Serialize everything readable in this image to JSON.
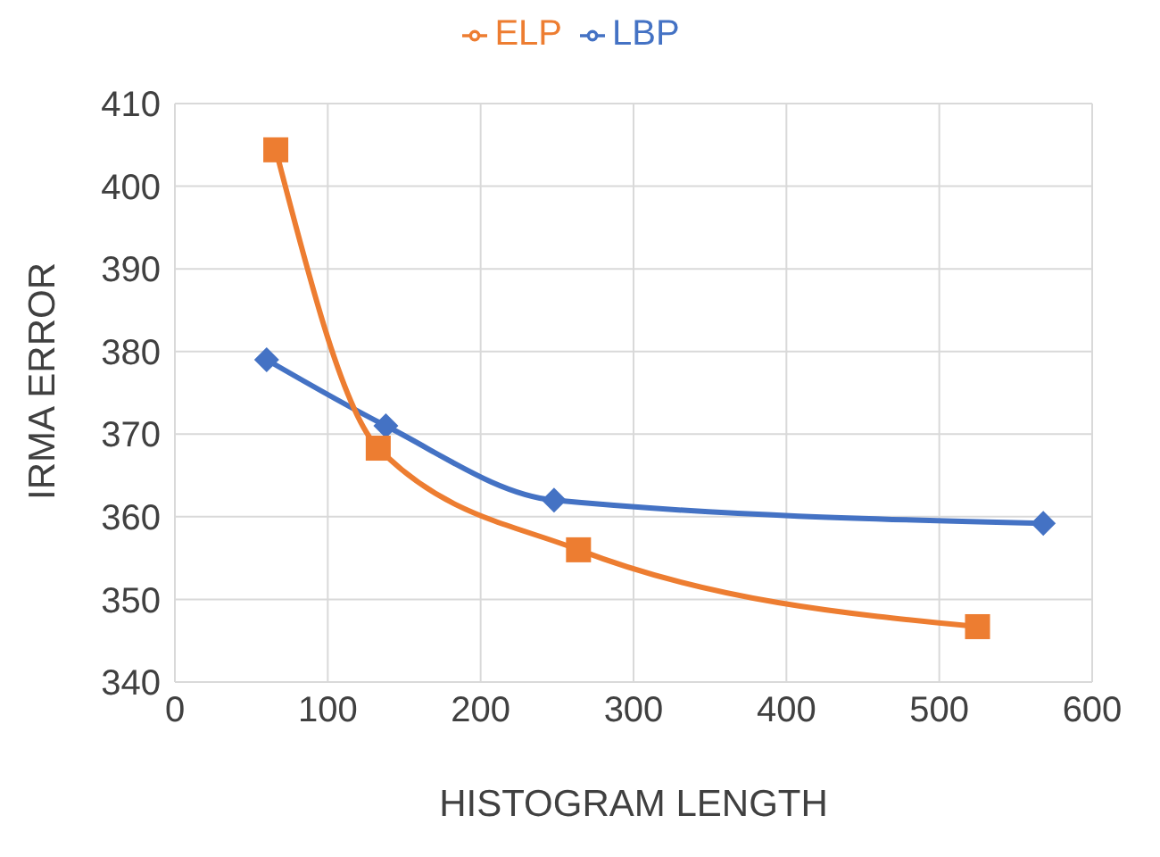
{
  "chart_data": {
    "type": "line",
    "xlabel": "HISTOGRAM LENGTH",
    "ylabel": "IRMA ERROR",
    "xlim": [
      0,
      600
    ],
    "xticks": [
      0,
      100,
      200,
      300,
      400,
      500,
      600
    ],
    "ylim": [
      340,
      410
    ],
    "yticks": [
      340,
      350,
      360,
      370,
      380,
      390,
      400,
      410
    ],
    "grid": true,
    "legend": "top",
    "series": [
      {
        "name": "LBP",
        "color": "#4472c4",
        "marker": "diamond",
        "x": [
          60,
          138,
          248,
          568
        ],
        "values": [
          379,
          371,
          362,
          359.2
        ]
      },
      {
        "name": "ELP",
        "color": "#ed7d31",
        "marker": "square",
        "x": [
          66,
          133,
          264,
          525
        ],
        "values": [
          404.4,
          368.3,
          356,
          346.7
        ]
      }
    ]
  }
}
